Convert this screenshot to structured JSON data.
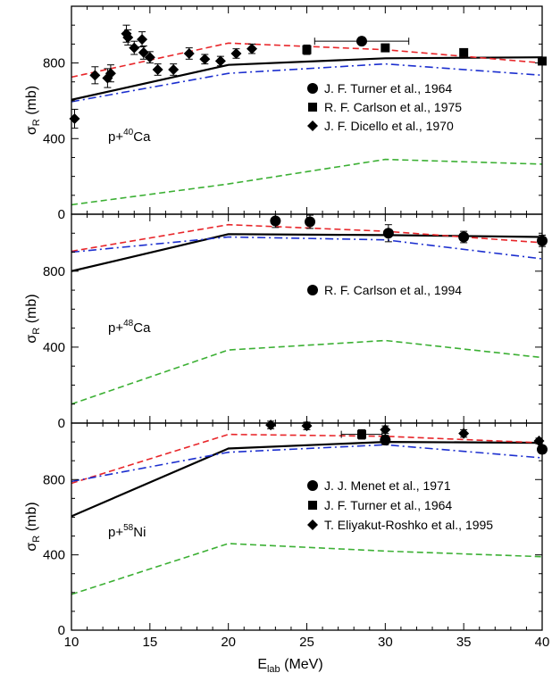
{
  "chart_data": [
    {
      "type": "line",
      "title": "",
      "xlabel": "",
      "ylabel": "σ_R (mb)",
      "xlim": [
        10,
        40
      ],
      "ylim": [
        0,
        1100
      ],
      "x_ticks": [
        10,
        15,
        20,
        25,
        30,
        35,
        40
      ],
      "y_ticks": [
        0,
        400,
        800
      ],
      "annotation": "p+40Ca",
      "nucleus": {
        "prefix": "p+",
        "mass": "40",
        "symbol": "Ca"
      },
      "curves": [
        {
          "style": "solid",
          "color": "#000000",
          "x": [
            10,
            20,
            30,
            40
          ],
          "y": [
            605,
            790,
            825,
            830
          ]
        },
        {
          "style": "dashed",
          "color": "#e8262a",
          "x": [
            10,
            20,
            30,
            40
          ],
          "y": [
            725,
            905,
            870,
            800
          ]
        },
        {
          "style": "dashdot",
          "color": "#1c2fcf",
          "x": [
            10,
            20,
            30,
            40
          ],
          "y": [
            595,
            745,
            795,
            735
          ]
        },
        {
          "style": "dashed",
          "color": "#3cb034",
          "x": [
            10,
            20,
            30,
            40
          ],
          "y": [
            50,
            160,
            290,
            265
          ]
        }
      ],
      "series": [
        {
          "name": "J. F. Turner et al., 1964",
          "marker": "circle",
          "x": [
            28.5
          ],
          "y": [
            915
          ],
          "xerr": [
            3
          ],
          "yerr": [
            15
          ]
        },
        {
          "name": "R. F. Carlson et al., 1975",
          "marker": "square",
          "x": [
            25,
            30,
            35,
            40
          ],
          "y": [
            870,
            880,
            855,
            810
          ],
          "yerr": [
            25,
            20,
            20,
            15
          ]
        },
        {
          "name": "J. F. Dicello et al., 1970",
          "marker": "diamond",
          "x": [
            10.2,
            11.5,
            12.3,
            12.5,
            13.5,
            13.6,
            14.0,
            14.5,
            14.6,
            15.0,
            15.5,
            16.5,
            17.5,
            18.5,
            19.5,
            20.5,
            21.5
          ],
          "y": [
            505,
            735,
            720,
            745,
            955,
            935,
            880,
            925,
            855,
            830,
            765,
            765,
            850,
            820,
            810,
            850,
            875
          ],
          "yerr": [
            50,
            45,
            50,
            45,
            45,
            40,
            35,
            40,
            35,
            30,
            30,
            30,
            30,
            25,
            25,
            25,
            25
          ]
        }
      ]
    },
    {
      "type": "line",
      "title": "",
      "xlabel": "",
      "ylabel": "σ_R (mb)",
      "xlim": [
        10,
        40
      ],
      "ylim": [
        0,
        1100
      ],
      "x_ticks": [
        10,
        15,
        20,
        25,
        30,
        35,
        40
      ],
      "y_ticks": [
        0,
        400,
        800
      ],
      "annotation": "p+48Ca",
      "nucleus": {
        "prefix": "p+",
        "mass": "48",
        "symbol": "Ca"
      },
      "curves": [
        {
          "style": "solid",
          "color": "#000000",
          "x": [
            10,
            20,
            30,
            40
          ],
          "y": [
            800,
            995,
            990,
            980
          ]
        },
        {
          "style": "dashed",
          "color": "#e8262a",
          "x": [
            10,
            20,
            30,
            40
          ],
          "y": [
            905,
            1045,
            1010,
            950
          ]
        },
        {
          "style": "dashdot",
          "color": "#1c2fcf",
          "x": [
            10,
            20,
            30,
            40
          ],
          "y": [
            900,
            980,
            965,
            865
          ]
        },
        {
          "style": "dashed",
          "color": "#3cb034",
          "x": [
            10,
            20,
            30,
            40
          ],
          "y": [
            100,
            385,
            435,
            345
          ]
        }
      ],
      "series": [
        {
          "name": "R. F. Carlson et al., 1994",
          "marker": "circle",
          "x": [
            23,
            25.2,
            30.2,
            35,
            40
          ],
          "y": [
            1065,
            1060,
            1000,
            980,
            960
          ],
          "yerr": [
            35,
            35,
            45,
            30,
            30
          ]
        }
      ]
    },
    {
      "type": "line",
      "title": "",
      "xlabel": "E_lab (MeV)",
      "ylabel": "σ_R (mb)",
      "xlim": [
        10,
        40
      ],
      "ylim": [
        0,
        1100
      ],
      "x_ticks": [
        10,
        15,
        20,
        25,
        30,
        35,
        40
      ],
      "y_ticks": [
        0,
        400,
        800
      ],
      "annotation": "p+58Ni",
      "nucleus": {
        "prefix": "p+",
        "mass": "58",
        "symbol": "Ni"
      },
      "curves": [
        {
          "style": "solid",
          "color": "#000000",
          "x": [
            10,
            20,
            30,
            40
          ],
          "y": [
            605,
            965,
            1000,
            995
          ]
        },
        {
          "style": "dashed",
          "color": "#e8262a",
          "x": [
            10,
            20,
            30,
            40
          ],
          "y": [
            780,
            1040,
            1030,
            995
          ]
        },
        {
          "style": "dashdot",
          "color": "#1c2fcf",
          "x": [
            10,
            20,
            30,
            40
          ],
          "y": [
            790,
            945,
            985,
            915
          ]
        },
        {
          "style": "dashed",
          "color": "#3cb034",
          "x": [
            10,
            20,
            30,
            40
          ],
          "y": [
            190,
            460,
            420,
            390
          ]
        }
      ],
      "series": [
        {
          "name": "J. J. Menet et al., 1971",
          "marker": "circle",
          "x": [
            30,
            40
          ],
          "y": [
            1010,
            960
          ],
          "yerr": [
            25,
            20
          ]
        },
        {
          "name": "J. F. Turner et al., 1964",
          "marker": "square",
          "x": [
            28.5
          ],
          "y": [
            1040
          ],
          "xerr": [
            1.3
          ],
          "yerr": [
            25
          ]
        },
        {
          "name": "T. Eliyakut-Roshko et al., 1995",
          "marker": "diamond",
          "x": [
            22.7,
            25.0,
            30.0,
            35.0,
            39.8
          ],
          "y": [
            1090,
            1085,
            1065,
            1045,
            1005
          ],
          "yerr": [
            20,
            20,
            20,
            20,
            15
          ]
        }
      ]
    }
  ],
  "shared_axes": {
    "ylabel_main": "σ",
    "ylabel_sub": "R",
    "ylabel_unit": " (mb)",
    "xlabel_main": "E",
    "xlabel_sub": "lab",
    "xlabel_unit": " (MeV)"
  }
}
